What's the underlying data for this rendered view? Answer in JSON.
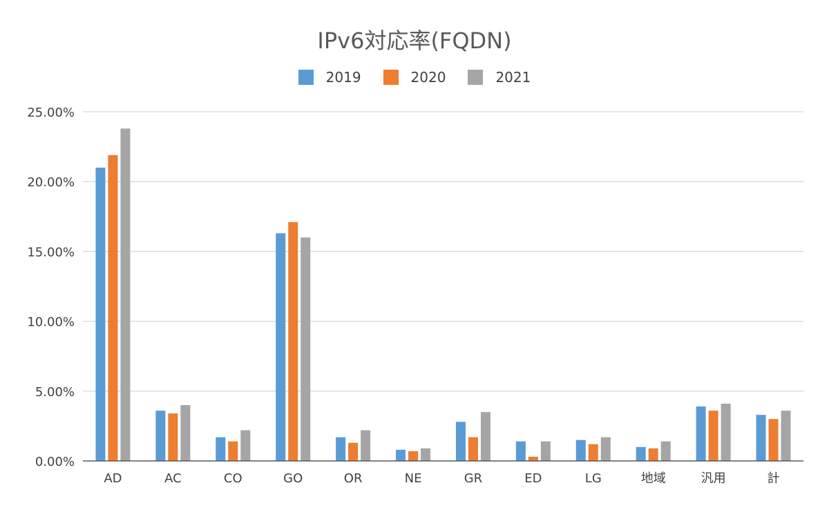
{
  "chart_data": {
    "type": "bar",
    "title": "IPv6対応率(FQDN)",
    "xlabel": "",
    "ylabel": "",
    "ylim": [
      0,
      0.25
    ],
    "ytick_values": [
      0,
      0.05,
      0.1,
      0.15,
      0.2,
      0.25
    ],
    "ytick_labels": [
      "0.00%",
      "5.00%",
      "10.00%",
      "15.00%",
      "20.00%",
      "25.00%"
    ],
    "grid": true,
    "legend_position": "top",
    "categories": [
      "AD",
      "AC",
      "CO",
      "GO",
      "OR",
      "NE",
      "GR",
      "ED",
      "LG",
      "地域",
      "汎用",
      "計"
    ],
    "series": [
      {
        "name": "2019",
        "color": "#5B9BD5",
        "values": [
          0.21,
          0.036,
          0.017,
          0.163,
          0.017,
          0.008,
          0.028,
          0.014,
          0.015,
          0.01,
          0.039,
          0.033
        ]
      },
      {
        "name": "2020",
        "color": "#ED7D31",
        "values": [
          0.219,
          0.034,
          0.014,
          0.171,
          0.013,
          0.007,
          0.017,
          0.003,
          0.012,
          0.009,
          0.036,
          0.03
        ]
      },
      {
        "name": "2021",
        "color": "#A5A5A5",
        "values": [
          0.238,
          0.04,
          0.022,
          0.16,
          0.022,
          0.009,
          0.035,
          0.014,
          0.017,
          0.014,
          0.041,
          0.036
        ]
      }
    ]
  }
}
